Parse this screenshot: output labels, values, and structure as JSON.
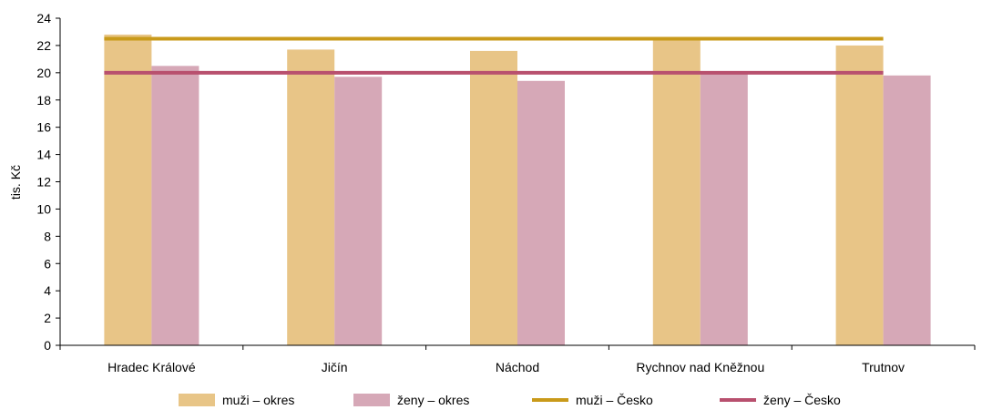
{
  "chart_data": {
    "type": "bar",
    "ylabel": "tis. Kč",
    "ylim": [
      0,
      24
    ],
    "yticks": [
      0,
      2,
      4,
      6,
      8,
      10,
      12,
      14,
      16,
      18,
      20,
      22,
      24
    ],
    "categories": [
      "Hradec Králové",
      "Jičín",
      "Náchod",
      "Rychnov nad Kněžnou",
      "Trutnov"
    ],
    "series": [
      {
        "name": "muži – okres",
        "kind": "bar",
        "color": "#e8c587",
        "values": [
          22.8,
          21.7,
          21.6,
          22.5,
          22.0
        ]
      },
      {
        "name": "ženy – okres",
        "kind": "bar",
        "color": "#d6a8b7",
        "values": [
          20.5,
          19.7,
          19.4,
          20.0,
          19.8
        ]
      },
      {
        "name": "muži – Česko",
        "kind": "line",
        "color": "#c99a1a",
        "value": 22.5
      },
      {
        "name": "ženy – Česko",
        "kind": "line",
        "color": "#b8506e",
        "value": 20.0
      }
    ],
    "grid": false,
    "legend": "bottom"
  }
}
